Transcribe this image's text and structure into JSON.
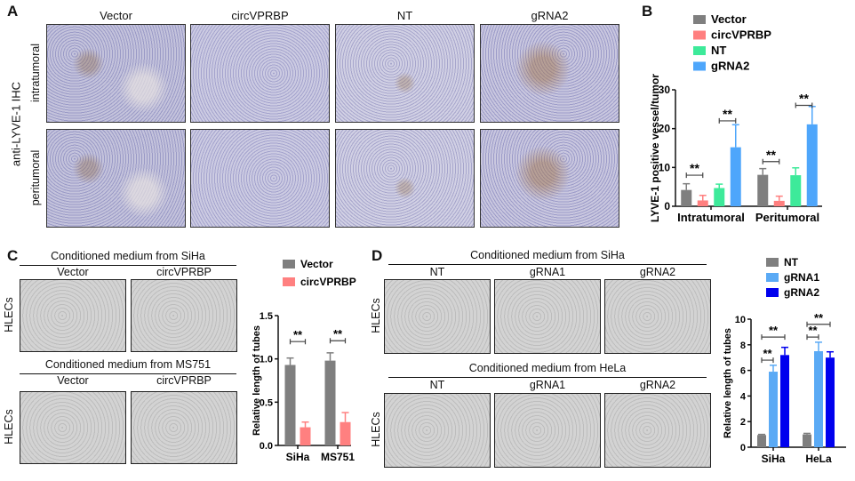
{
  "panelA": {
    "label": "A",
    "y_title": "anti-LYVE-1 IHC",
    "columns": [
      "Vector",
      "circVPRBP",
      "NT",
      "gRNA2"
    ],
    "rows": [
      "intratumoral",
      "peritumoral"
    ]
  },
  "panelC": {
    "label": "C",
    "row_label": "HLECs",
    "headers": [
      "Conditioned medium from SiHa",
      "Conditioned medium from MS751"
    ],
    "columns": [
      "Vector",
      "circVPRBP"
    ]
  },
  "panelD": {
    "label": "D",
    "row_label": "HLECs",
    "headers": [
      "Conditioned medium from SiHa",
      "Conditioned medium from HeLa"
    ],
    "columns": [
      "NT",
      "gRNA1",
      "gRNA2"
    ]
  },
  "chart_data": [
    {
      "id": "B",
      "panel_label": "B",
      "type": "bar",
      "ylabel": "LYVE-1 positive vessel/tumor",
      "ylim": [
        0,
        30
      ],
      "yticks": [
        0,
        10,
        20,
        30
      ],
      "categories": [
        "Intratumoral",
        "Peritumoral"
      ],
      "legend": "top",
      "series": [
        {
          "name": "Vector",
          "color": "#7f7f7f",
          "values": [
            4.2,
            8.1
          ],
          "errors": [
            1.6,
            1.6
          ]
        },
        {
          "name": "circVPRBP",
          "color": "#ff7f7f",
          "values": [
            1.5,
            1.4
          ],
          "errors": [
            1.3,
            1.2
          ]
        },
        {
          "name": "NT",
          "color": "#3dea9a",
          "values": [
            4.7,
            8.0
          ],
          "errors": [
            1.0,
            1.9
          ]
        },
        {
          "name": "gRNA2",
          "color": "#4ea6fb",
          "values": [
            15.2,
            21.1
          ],
          "errors": [
            5.8,
            4.6
          ]
        }
      ],
      "significance": [
        {
          "group": 0,
          "from": 0,
          "to": 1,
          "y": 8,
          "label": "**"
        },
        {
          "group": 0,
          "from": 2,
          "to": 3,
          "y": 22,
          "label": "**"
        },
        {
          "group": 1,
          "from": 0,
          "to": 1,
          "y": 11.5,
          "label": "**"
        },
        {
          "group": 1,
          "from": 2,
          "to": 3,
          "y": 26,
          "label": "**"
        }
      ]
    },
    {
      "id": "C",
      "type": "bar",
      "ylabel": "Relative length of tubes",
      "ylim": [
        0,
        1.5
      ],
      "yticks": [
        "0.0",
        "0.5",
        "1.0",
        "1.5"
      ],
      "categories": [
        "SiHa",
        "MS751"
      ],
      "legend": "top",
      "series": [
        {
          "name": "Vector",
          "color": "#7f7f7f",
          "values": [
            0.93,
            0.98
          ],
          "errors": [
            0.08,
            0.09
          ]
        },
        {
          "name": "circVPRBP",
          "color": "#ff8080",
          "values": [
            0.21,
            0.27
          ],
          "errors": [
            0.06,
            0.11
          ]
        }
      ],
      "significance": [
        {
          "group": 0,
          "from": 0,
          "to": 1,
          "y": 1.2,
          "label": "**"
        },
        {
          "group": 1,
          "from": 0,
          "to": 1,
          "y": 1.21,
          "label": "**"
        }
      ]
    },
    {
      "id": "D",
      "type": "bar",
      "ylabel": "Relative length of tubes",
      "ylim": [
        0,
        10
      ],
      "yticks": [
        0,
        2,
        4,
        6,
        8,
        10
      ],
      "categories": [
        "SiHa",
        "HeLa"
      ],
      "legend": "top",
      "series": [
        {
          "name": "NT",
          "color": "#7f7f7f",
          "values": [
            0.95,
            1.0
          ],
          "errors": [
            0.05,
            0.08
          ]
        },
        {
          "name": "gRNA1",
          "color": "#5aaaf5",
          "values": [
            5.9,
            7.5
          ],
          "errors": [
            0.5,
            0.7
          ]
        },
        {
          "name": "gRNA2",
          "color": "#0000ee",
          "values": [
            7.2,
            7.0
          ],
          "errors": [
            0.6,
            0.45
          ]
        }
      ],
      "significance": [
        {
          "group": 0,
          "from": 0,
          "to": 1,
          "y": 6.8,
          "label": "**"
        },
        {
          "group": 0,
          "from": 0,
          "to": 2,
          "y": 8.6,
          "label": "**"
        },
        {
          "group": 1,
          "from": 0,
          "to": 1,
          "y": 8.6,
          "label": "**"
        },
        {
          "group": 1,
          "from": 0,
          "to": 2,
          "y": 9.6,
          "label": "**"
        }
      ]
    }
  ]
}
